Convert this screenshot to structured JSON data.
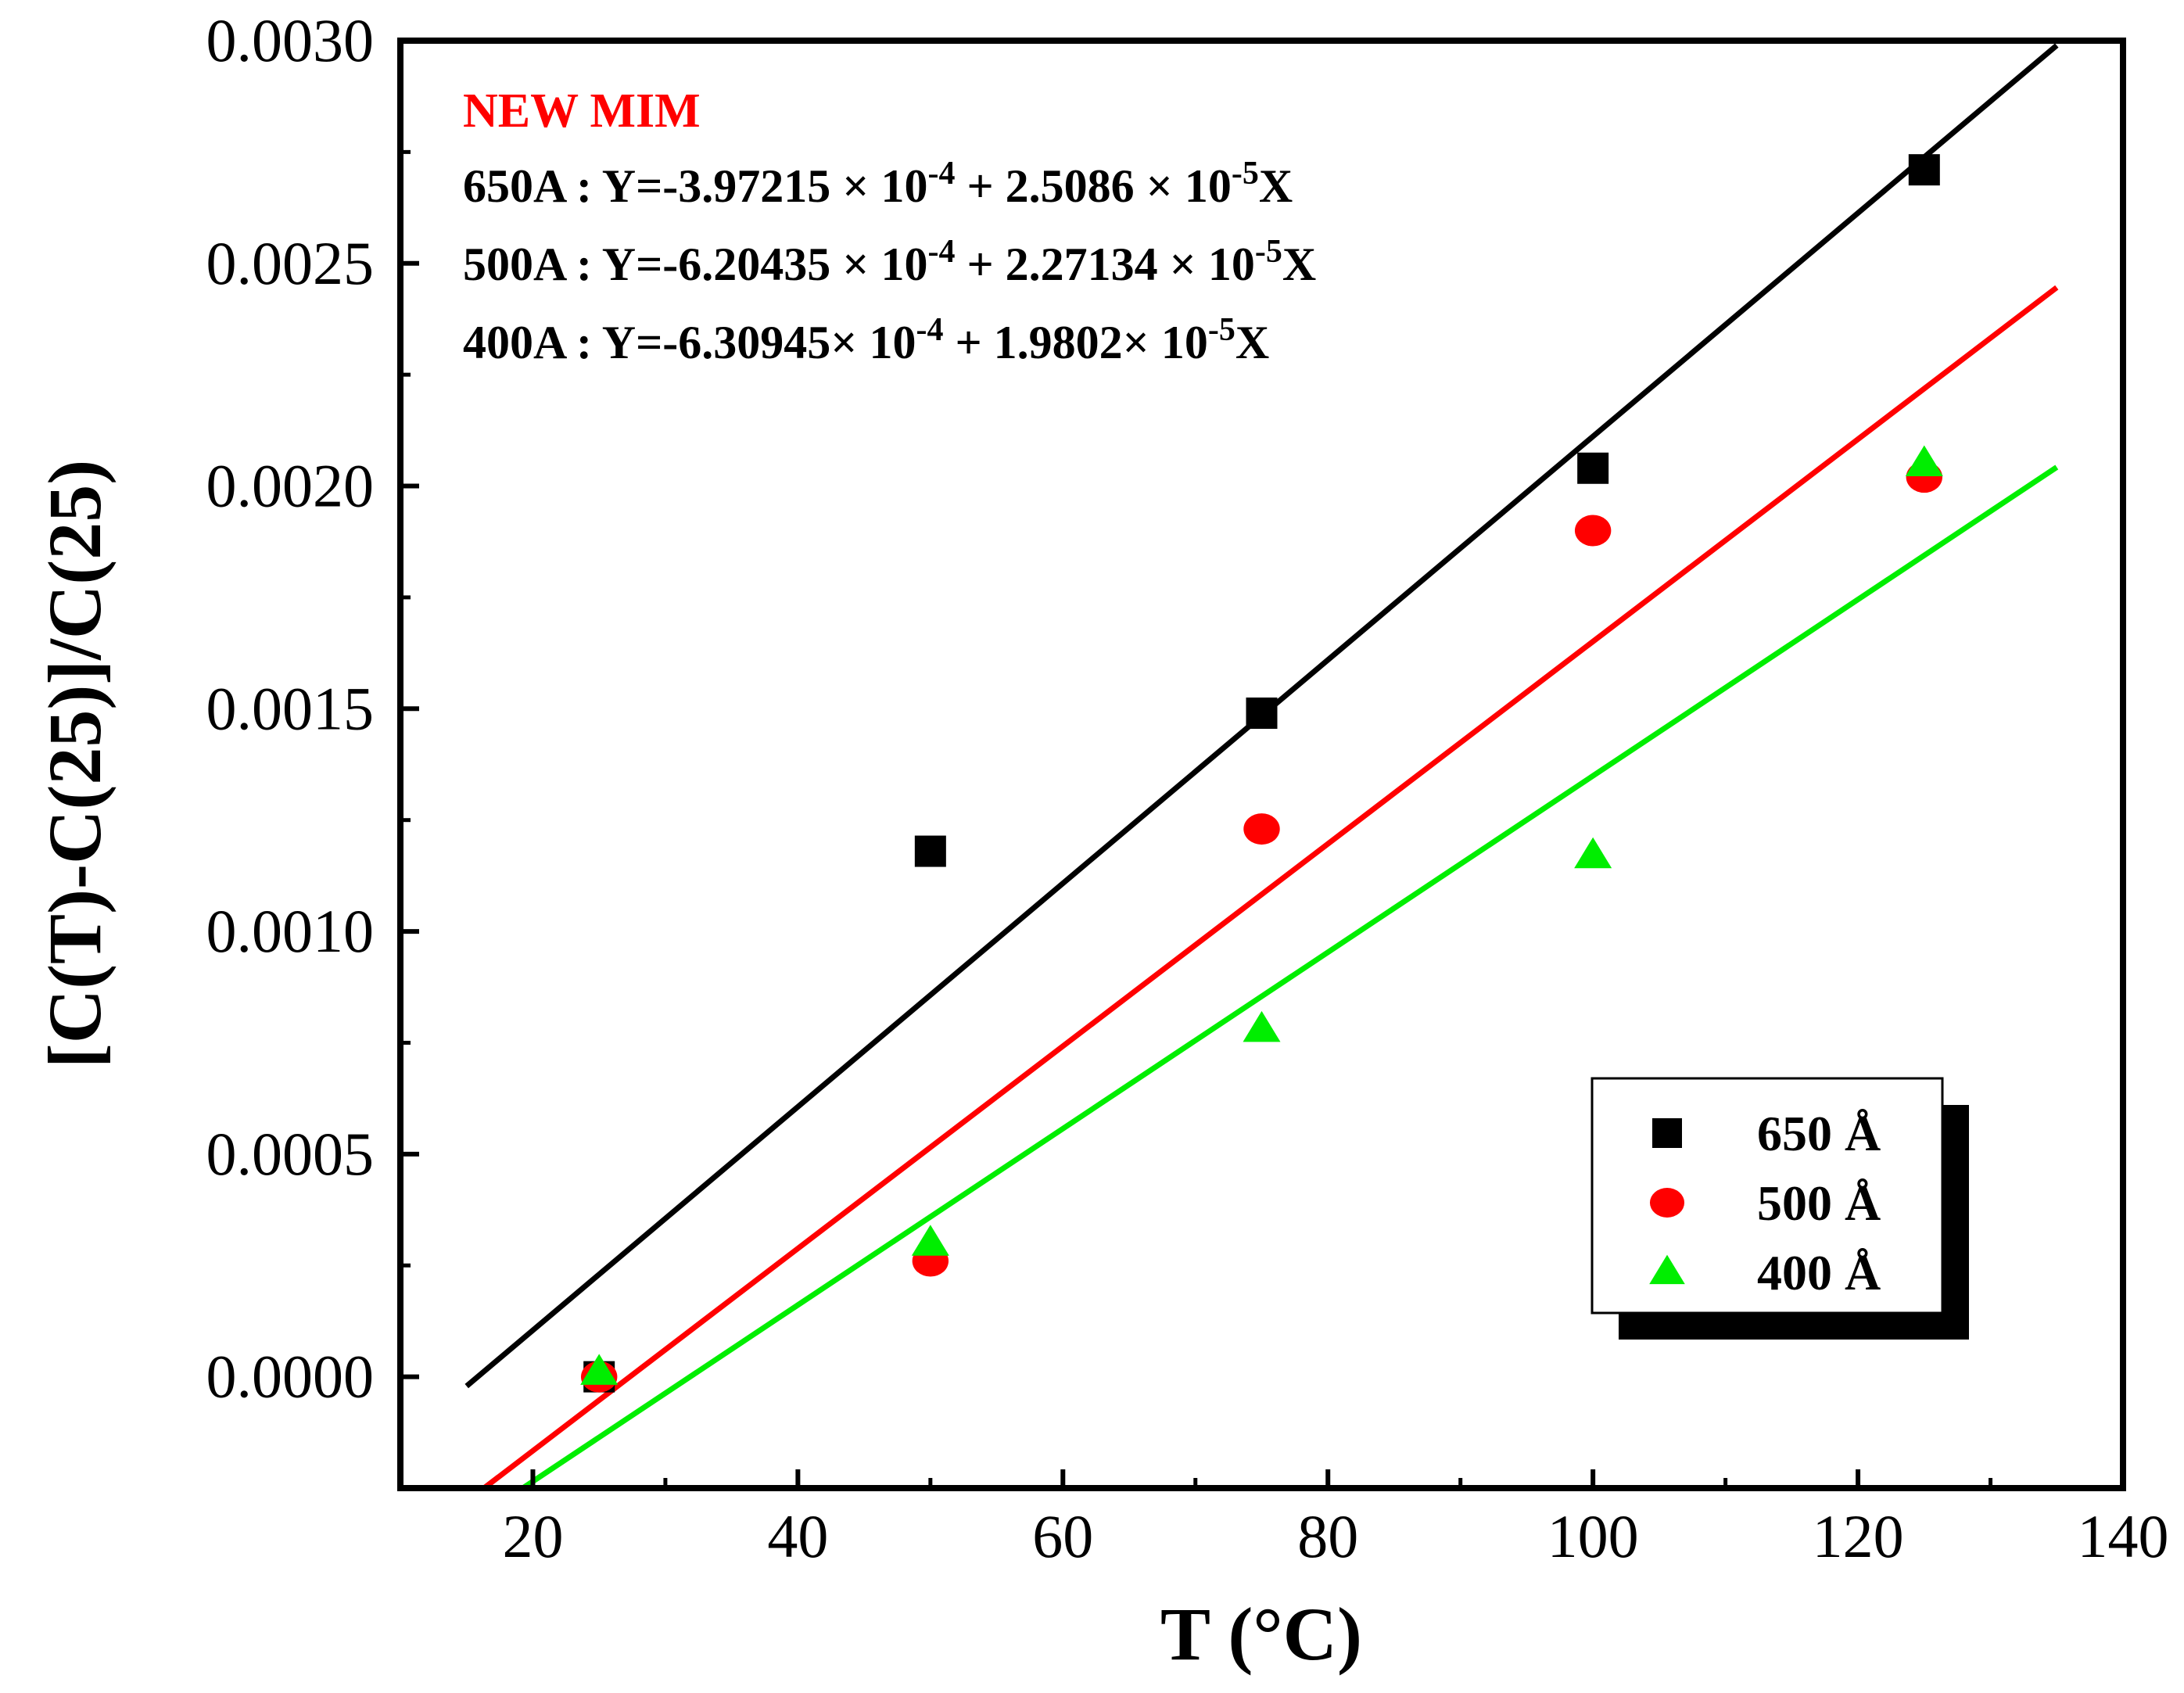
{
  "chart_data": {
    "type": "scatter",
    "title": "",
    "xlabel": "T (°C)",
    "ylabel": "[C(T)-C(25)]/C(25)",
    "xlim": [
      10,
      140
    ],
    "ylim": [
      -0.00025,
      0.003
    ],
    "x_ticks": [
      "20",
      "40",
      "60",
      "80",
      "100",
      "120",
      "140"
    ],
    "y_ticks": [
      "0.0000",
      "0.0005",
      "0.0010",
      "0.0015",
      "0.0020",
      "0.0025",
      "0.0030"
    ],
    "grid": false,
    "legend_position": "bottom-right",
    "annotations": {
      "header": "NEW MIM",
      "header_color": "#ff0000",
      "equations": [
        {
          "prefix": "650A : Y=-3.97215 × 10",
          "exp1": "-4",
          "middle": " + 2.5086 × 10",
          "exp2": "-5",
          "suffix": "X"
        },
        {
          "prefix": "500A : Y=-6.20435 × 10",
          "exp1": "-4",
          "middle": " + 2.27134 × 10",
          "exp2": "-5",
          "suffix": "X"
        },
        {
          "prefix": "400A : Y=-6.30945× 10",
          "exp1": "-4",
          "middle": "  + 1.9802× 10",
          "exp2": "-5",
          "suffix": "X"
        }
      ]
    },
    "series": [
      {
        "name": "650 Å",
        "marker": "square",
        "color": "#000000",
        "x": [
          25,
          50,
          75,
          100,
          125
        ],
        "y": [
          0.0,
          0.00118,
          0.00149,
          0.00204,
          0.00271
        ],
        "fit": {
          "intercept": -0.000397215,
          "slope": 2.5086e-05,
          "x_range": [
            15,
            135
          ]
        }
      },
      {
        "name": "500 Å",
        "marker": "circle",
        "color": "#ff0000",
        "x": [
          25,
          50,
          75,
          100,
          125
        ],
        "y": [
          0.0,
          0.00026,
          0.00123,
          0.0019,
          0.00202
        ],
        "fit": {
          "intercept": -0.000620435,
          "slope": 2.27134e-05,
          "x_range": [
            15,
            135
          ]
        }
      },
      {
        "name": "400 Å",
        "marker": "triangle",
        "color": "#00ee00",
        "x": [
          25,
          50,
          75,
          100,
          125
        ],
        "y": [
          1e-05,
          0.0003,
          0.00078,
          0.00117,
          0.00205
        ],
        "fit": {
          "intercept": -0.000630945,
          "slope": 1.9802e-05,
          "x_range": [
            15,
            135
          ]
        }
      }
    ]
  }
}
